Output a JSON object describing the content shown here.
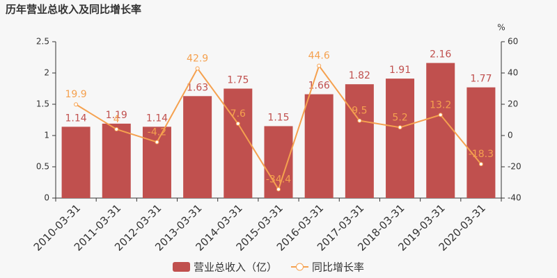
{
  "chart_data": {
    "type": "bar",
    "title": "历年营业总收入及同比增长率",
    "categories": [
      "2010-03-31",
      "2011-03-31",
      "2012-03-31",
      "2013-03-31",
      "2014-03-31",
      "2015-03-31",
      "2016-03-31",
      "2017-03-31",
      "2018-03-31",
      "2019-03-31",
      "2020-03-31"
    ],
    "series": [
      {
        "name": "营业总收入（亿）",
        "type": "bar",
        "color": "#c0504e",
        "values": [
          1.14,
          1.19,
          1.14,
          1.63,
          1.75,
          1.15,
          1.66,
          1.82,
          1.91,
          2.16,
          1.77
        ]
      },
      {
        "name": "同比增长率",
        "type": "line",
        "axis": "y2",
        "color": "#f5a14f",
        "values": [
          19.9,
          4,
          -4.2,
          42.9,
          7.6,
          -34.4,
          44.6,
          9.5,
          5.2,
          13.2,
          -18.3
        ]
      }
    ],
    "ylim": [
      0,
      2.5
    ],
    "yticks": [
      0,
      0.5,
      1,
      1.5,
      2,
      2.5
    ],
    "y2lim": [
      -40,
      60
    ],
    "y2ticks": [
      -40,
      -20,
      0,
      20,
      40,
      60
    ],
    "y2_label": "%"
  }
}
